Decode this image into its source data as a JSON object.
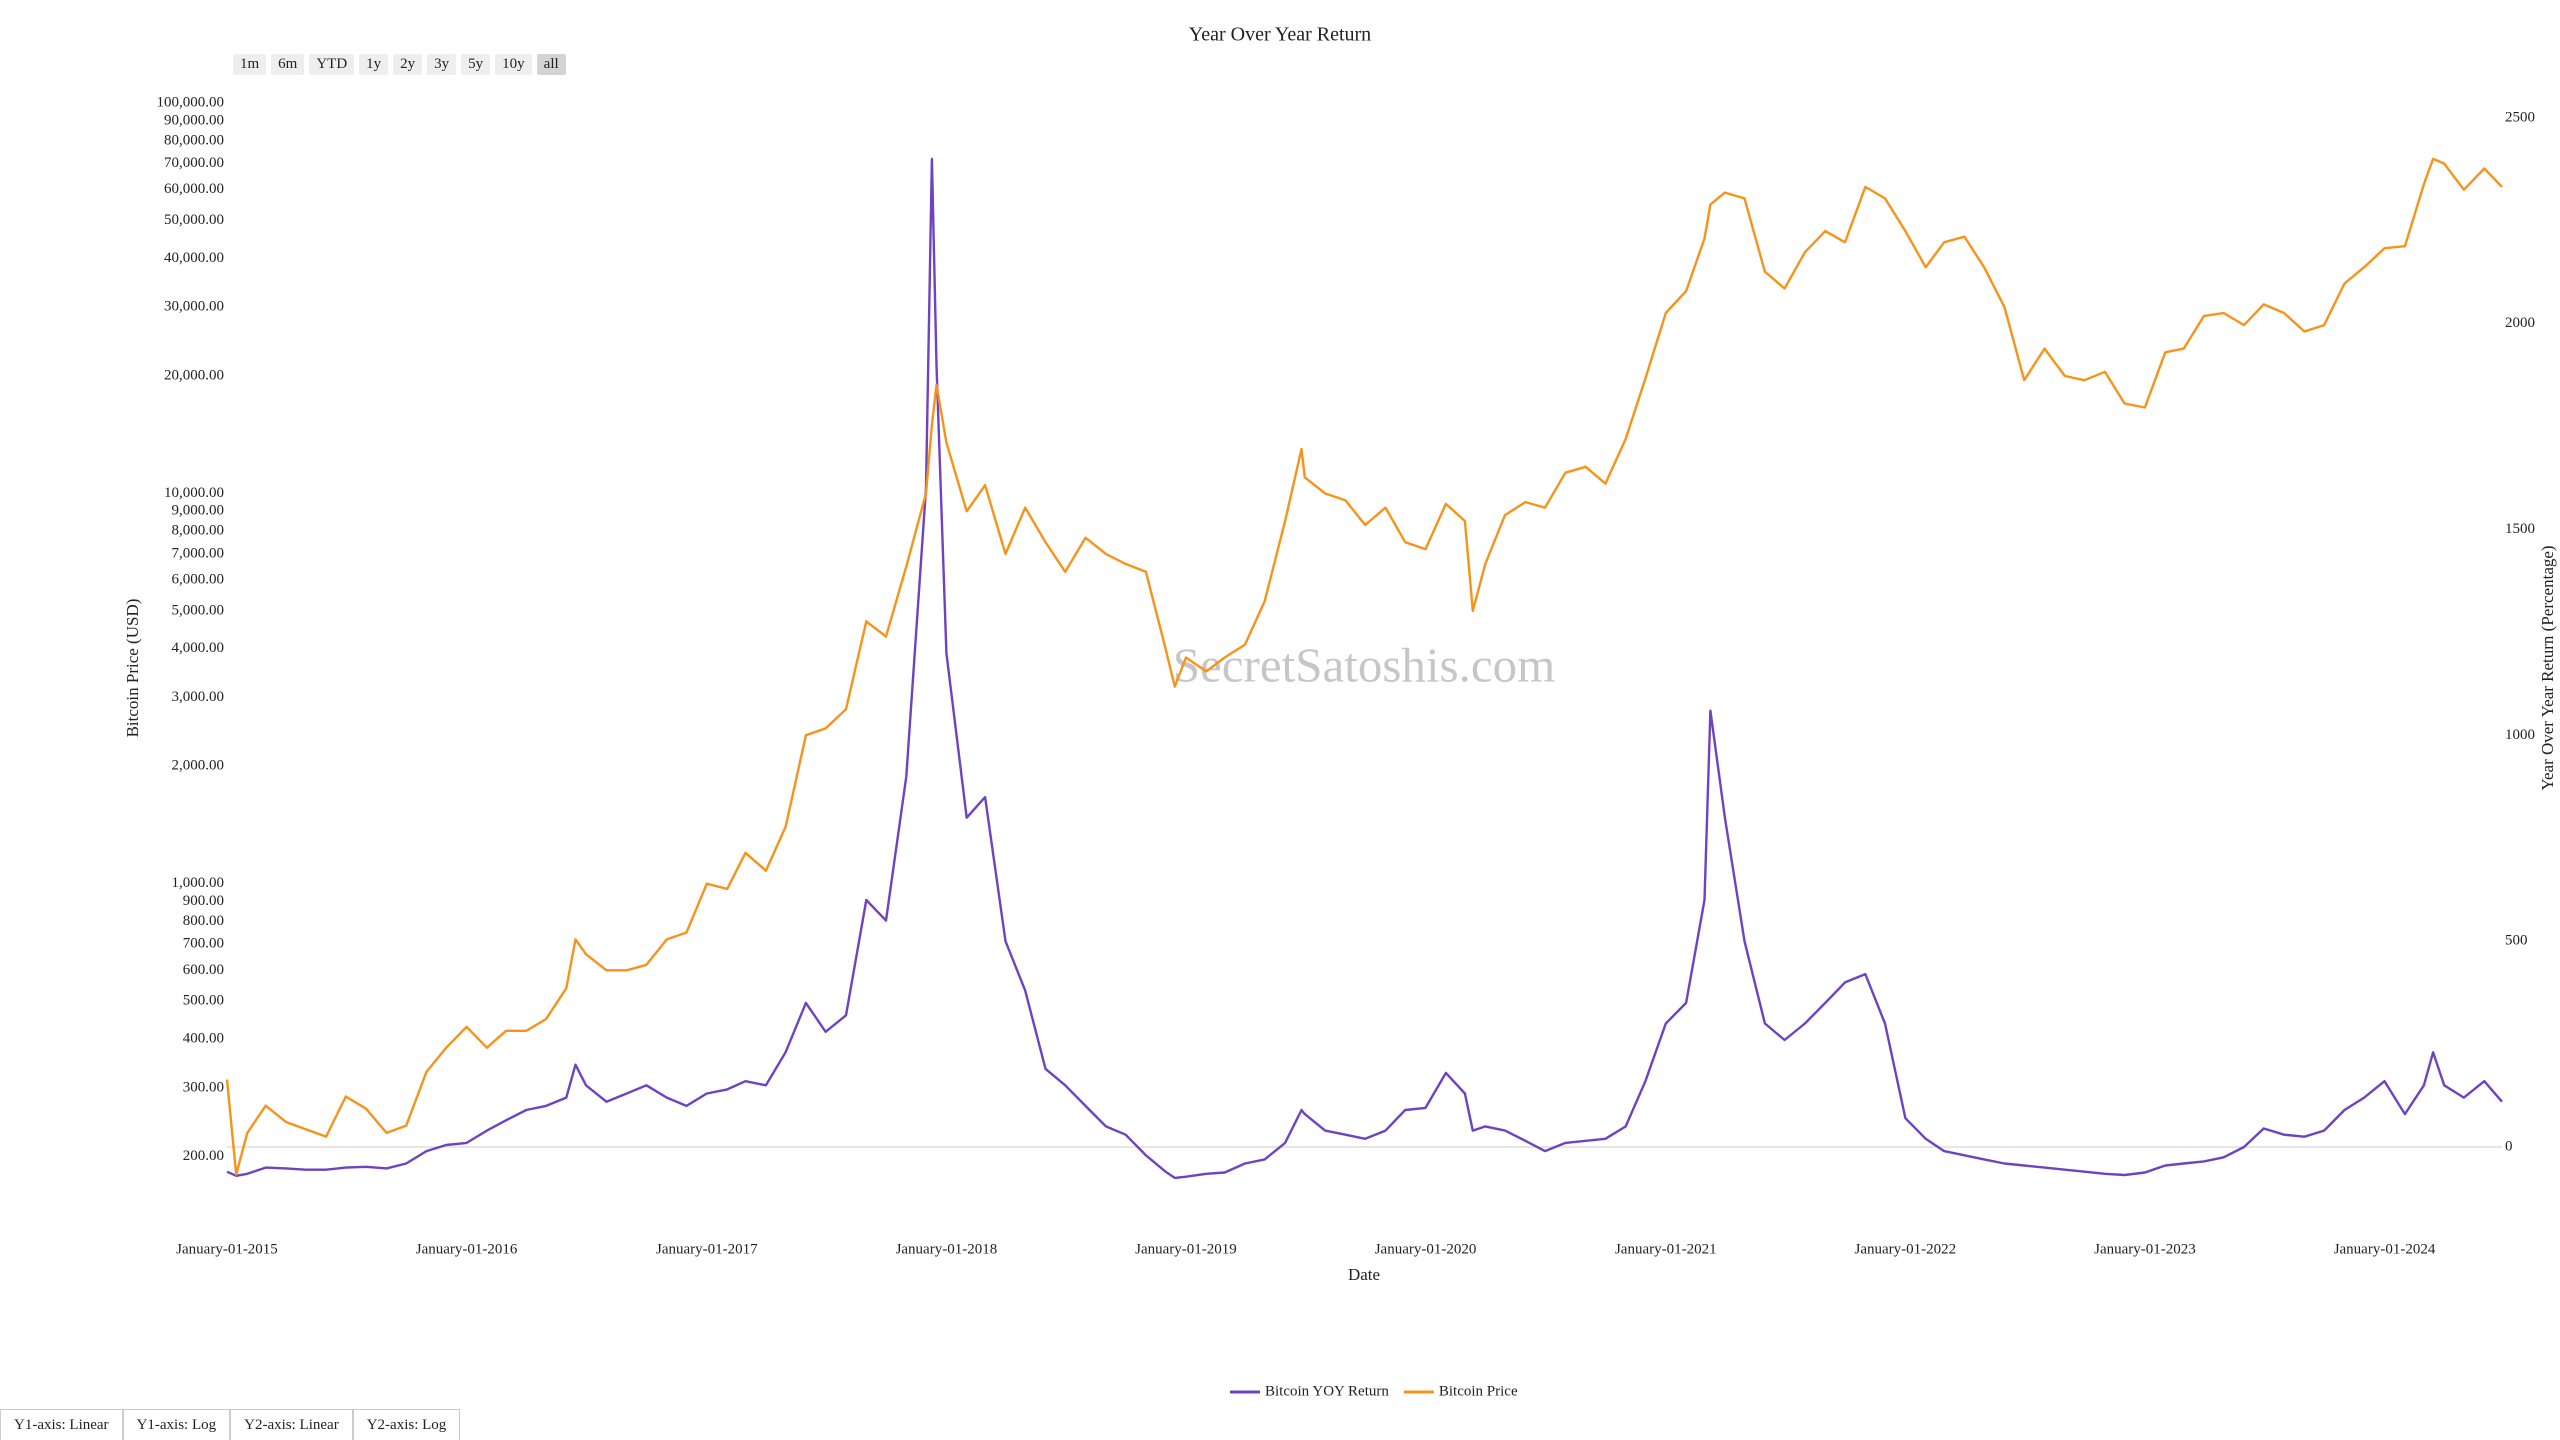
{
  "chart_data": {
    "type": "line",
    "title": "Year Over Year Return",
    "x_label": "Date",
    "y_label": "Bitcoin Price (USD)",
    "y2_label": "Year Over Year Return (Percentage)",
    "watermark": "SecretSatoshis.com",
    "y_scale": "log",
    "y2_zeroline": true,
    "legend": "bottom",
    "x": [
      "2015-01-01",
      "2015-01-15",
      "2015-02-01",
      "2015-03-01",
      "2015-04-01",
      "2015-05-01",
      "2015-06-01",
      "2015-07-01",
      "2015-08-01",
      "2015-09-01",
      "2015-10-01",
      "2015-11-01",
      "2015-12-01",
      "2016-01-01",
      "2016-02-01",
      "2016-03-01",
      "2016-04-01",
      "2016-05-01",
      "2016-06-01",
      "2016-06-15",
      "2016-07-01",
      "2016-08-01",
      "2016-09-01",
      "2016-10-01",
      "2016-11-01",
      "2016-12-01",
      "2017-01-01",
      "2017-02-01",
      "2017-03-01",
      "2017-04-01",
      "2017-05-01",
      "2017-06-01",
      "2017-07-01",
      "2017-08-01",
      "2017-09-01",
      "2017-10-01",
      "2017-11-01",
      "2017-12-01",
      "2017-12-10",
      "2017-12-17",
      "2018-01-01",
      "2018-02-01",
      "2018-03-01",
      "2018-04-01",
      "2018-05-01",
      "2018-06-01",
      "2018-07-01",
      "2018-08-01",
      "2018-09-01",
      "2018-10-01",
      "2018-11-01",
      "2018-12-01",
      "2018-12-15",
      "2019-01-01",
      "2019-02-01",
      "2019-03-01",
      "2019-04-01",
      "2019-05-01",
      "2019-06-01",
      "2019-06-26",
      "2019-07-01",
      "2019-08-01",
      "2019-09-01",
      "2019-10-01",
      "2019-11-01",
      "2019-12-01",
      "2020-01-01",
      "2020-02-01",
      "2020-03-01",
      "2020-03-13",
      "2020-04-01",
      "2020-05-01",
      "2020-06-01",
      "2020-07-01",
      "2020-08-01",
      "2020-09-01",
      "2020-10-01",
      "2020-11-01",
      "2020-12-01",
      "2021-01-01",
      "2021-02-01",
      "2021-03-01",
      "2021-03-10",
      "2021-04-01",
      "2021-05-01",
      "2021-06-01",
      "2021-07-01",
      "2021-08-01",
      "2021-09-01",
      "2021-10-01",
      "2021-11-01",
      "2021-12-01",
      "2022-01-01",
      "2022-02-01",
      "2022-03-01",
      "2022-04-01",
      "2022-05-01",
      "2022-06-01",
      "2022-07-01",
      "2022-08-01",
      "2022-09-01",
      "2022-10-01",
      "2022-11-01",
      "2022-12-01",
      "2023-01-01",
      "2023-02-01",
      "2023-03-01",
      "2023-04-01",
      "2023-05-01",
      "2023-06-01",
      "2023-07-01",
      "2023-08-01",
      "2023-09-01",
      "2023-10-01",
      "2023-11-01",
      "2023-12-01",
      "2024-01-01",
      "2024-02-01",
      "2024-03-01",
      "2024-03-15",
      "2024-04-01",
      "2024-05-01",
      "2024-06-01",
      "2024-06-28"
    ],
    "series": [
      {
        "name": "Bitcoin YOY Return",
        "color": "#6f42c1",
        "axis": "y2",
        "values": [
          -60,
          -70,
          -65,
          -50,
          -52,
          -55,
          -55,
          -50,
          -48,
          -52,
          -40,
          -10,
          5,
          10,
          40,
          65,
          90,
          100,
          120,
          200,
          150,
          110,
          130,
          150,
          120,
          100,
          130,
          140,
          160,
          150,
          230,
          350,
          280,
          320,
          600,
          550,
          900,
          1600,
          2400,
          1900,
          1200,
          800,
          850,
          500,
          380,
          190,
          150,
          100,
          50,
          30,
          -20,
          -60,
          -75,
          -72,
          -65,
          -62,
          -40,
          -30,
          10,
          90,
          80,
          40,
          30,
          20,
          40,
          90,
          95,
          180,
          130,
          40,
          50,
          40,
          15,
          -10,
          10,
          15,
          20,
          50,
          160,
          300,
          350,
          600,
          1060,
          800,
          500,
          300,
          260,
          300,
          350,
          400,
          420,
          300,
          70,
          20,
          -10,
          -20,
          -30,
          -40,
          -45,
          -50,
          -55,
          -60,
          -65,
          -68,
          -62,
          -45,
          -40,
          -35,
          -25,
          0,
          45,
          30,
          25,
          40,
          90,
          120,
          160,
          80,
          150,
          230,
          150,
          120,
          160,
          110
        ]
      },
      {
        "name": "Bitcoin Price",
        "color": "#f7931a",
        "axis": "y",
        "values": [
          315,
          180,
          230,
          270,
          245,
          235,
          225,
          285,
          265,
          230,
          240,
          330,
          380,
          430,
          380,
          420,
          420,
          450,
          540,
          720,
          660,
          600,
          600,
          620,
          720,
          750,
          1000,
          970,
          1200,
          1080,
          1400,
          2400,
          2500,
          2800,
          4700,
          4300,
          6500,
          10000,
          15000,
          19000,
          13500,
          9000,
          10500,
          7000,
          9200,
          7500,
          6300,
          7700,
          7000,
          6600,
          6300,
          4000,
          3200,
          3800,
          3500,
          3800,
          4100,
          5300,
          8500,
          13000,
          11000,
          10000,
          9600,
          8300,
          9200,
          7500,
          7200,
          9400,
          8500,
          5000,
          6600,
          8800,
          9500,
          9200,
          11300,
          11700,
          10600,
          13800,
          19700,
          29000,
          33000,
          45000,
          55000,
          59000,
          57000,
          37000,
          33500,
          41500,
          47000,
          44000,
          61000,
          57000,
          47000,
          38000,
          44000,
          45500,
          38000,
          30000,
          19500,
          23500,
          20000,
          19500,
          20500,
          17000,
          16600,
          23000,
          23500,
          28500,
          29000,
          27000,
          30500,
          29000,
          26000,
          27000,
          34500,
          38000,
          42500,
          43000,
          62000,
          72000,
          70000,
          60000,
          68000,
          61000
        ]
      }
    ],
    "xlim": [
      "2015-01-01",
      "2024-06-28"
    ],
    "xticks": [
      {
        "value": "2015-01-01",
        "label": "January-01-2015"
      },
      {
        "value": "2016-01-01",
        "label": "January-01-2016"
      },
      {
        "value": "2017-01-01",
        "label": "January-01-2017"
      },
      {
        "value": "2018-01-01",
        "label": "January-01-2018"
      },
      {
        "value": "2019-01-01",
        "label": "January-01-2019"
      },
      {
        "value": "2020-01-01",
        "label": "January-01-2020"
      },
      {
        "value": "2021-01-01",
        "label": "January-01-2021"
      },
      {
        "value": "2022-01-01",
        "label": "January-01-2022"
      },
      {
        "value": "2023-01-01",
        "label": "January-01-2023"
      },
      {
        "value": "2024-01-01",
        "label": "January-01-2024"
      }
    ],
    "ylim": [
      140,
      110000
    ],
    "yticks": [
      {
        "value": 200,
        "label": "200.00"
      },
      {
        "value": 300,
        "label": "300.00"
      },
      {
        "value": 400,
        "label": "400.00"
      },
      {
        "value": 500,
        "label": "500.00"
      },
      {
        "value": 600,
        "label": "600.00"
      },
      {
        "value": 700,
        "label": "700.00"
      },
      {
        "value": 800,
        "label": "800.00"
      },
      {
        "value": 900,
        "label": "900.00"
      },
      {
        "value": 1000,
        "label": "1,000.00"
      },
      {
        "value": 2000,
        "label": "2,000.00"
      },
      {
        "value": 3000,
        "label": "3,000.00"
      },
      {
        "value": 4000,
        "label": "4,000.00"
      },
      {
        "value": 5000,
        "label": "5,000.00"
      },
      {
        "value": 6000,
        "label": "6,000.00"
      },
      {
        "value": 7000,
        "label": "7,000.00"
      },
      {
        "value": 8000,
        "label": "8,000.00"
      },
      {
        "value": 9000,
        "label": "9,000.00"
      },
      {
        "value": 10000,
        "label": "10,000.00"
      },
      {
        "value": 20000,
        "label": "20,000.00"
      },
      {
        "value": 30000,
        "label": "30,000.00"
      },
      {
        "value": 40000,
        "label": "40,000.00"
      },
      {
        "value": 50000,
        "label": "50,000.00"
      },
      {
        "value": 60000,
        "label": "60,000.00"
      },
      {
        "value": 70000,
        "label": "70,000.00"
      },
      {
        "value": 80000,
        "label": "80,000.00"
      },
      {
        "value": 90000,
        "label": "90,000.00"
      },
      {
        "value": 100000,
        "label": "100,000.00"
      }
    ],
    "y2lim": [
      -170,
      2575
    ],
    "y2ticks": [
      0,
      500,
      1000,
      1500,
      2000,
      2500
    ]
  },
  "controls": {
    "range_buttons": [
      "1m",
      "6m",
      "YTD",
      "1y",
      "2y",
      "3y",
      "5y",
      "10y",
      "all"
    ],
    "active_range_button": 8,
    "axis_buttons": [
      "Y1-axis: Linear",
      "Y1-axis: Log",
      "Y2-axis: Linear",
      "Y2-axis: Log"
    ]
  }
}
